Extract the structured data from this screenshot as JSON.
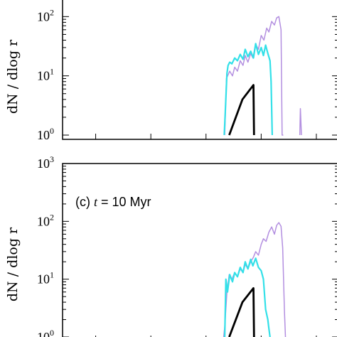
{
  "chart_data": [
    {
      "panel": "b",
      "type": "line",
      "panel_label": "",
      "ylabel": "dN / dlog r",
      "yscale": "log",
      "ylim": [
        1,
        1000
      ],
      "ytick_labels": [
        {
          "base": "10",
          "exp": "0",
          "value": 1
        },
        {
          "base": "10",
          "exp": "1",
          "value": 10
        },
        {
          "base": "10",
          "exp": "2",
          "value": 100
        }
      ],
      "xticks": [
        0.6,
        1.6,
        2.6,
        3.6,
        4.6
      ],
      "xlim": [
        0,
        5
      ],
      "series": [
        {
          "color": "#b38fe0",
          "width": 1.5,
          "x": [
            2.94,
            2.97,
            3.03,
            3.08,
            3.12,
            3.17,
            3.22,
            3.27,
            3.31,
            3.36,
            3.41,
            3.45,
            3.5,
            3.55,
            3.6,
            3.65,
            3.7,
            3.74,
            3.79,
            3.84,
            3.88,
            3.92,
            3.96,
            3.98,
            4.0
          ],
          "y": [
            1,
            9,
            12,
            10,
            14,
            12,
            18,
            15,
            22,
            17,
            24,
            20,
            34,
            28,
            48,
            40,
            64,
            55,
            83,
            72,
            95,
            100,
            60,
            1,
            1
          ]
        },
        {
          "color": "#b38fe0",
          "width": 1.5,
          "x": [
            4.3,
            4.31,
            4.33
          ],
          "y": [
            1,
            2.8,
            1
          ]
        },
        {
          "color": "#33e0e8",
          "width": 2.2,
          "x": [
            2.93,
            2.95,
            2.98,
            3.0,
            3.03,
            3.07,
            3.12,
            3.17,
            3.22,
            3.27,
            3.31,
            3.36,
            3.41,
            3.46,
            3.5,
            3.55,
            3.6,
            3.64,
            3.68,
            3.72,
            3.76,
            3.78,
            3.8
          ],
          "y": [
            1,
            2.5,
            11,
            15,
            17,
            16,
            20,
            18,
            23,
            19,
            28,
            21,
            26,
            20,
            35,
            23,
            30,
            22,
            33,
            24,
            18,
            8,
            1
          ]
        },
        {
          "color": "#000000",
          "width": 2.8,
          "x": [
            3.02,
            3.26,
            3.46,
            3.47
          ],
          "y": [
            1,
            4,
            7,
            1
          ]
        }
      ]
    },
    {
      "panel": "c",
      "type": "line",
      "panel_label": "(c) t = 10 Myr",
      "panel_label_parts": {
        "prefix": "(c) ",
        "var": "t",
        "suffix": " = 10 Myr"
      },
      "ylabel": "dN / dlog r",
      "yscale": "log",
      "ylim": [
        1,
        1000
      ],
      "ytick_labels": [
        {
          "base": "10",
          "exp": "0",
          "value": 1
        },
        {
          "base": "10",
          "exp": "1",
          "value": 10
        },
        {
          "base": "10",
          "exp": "2",
          "value": 100
        },
        {
          "base": "10",
          "exp": "3",
          "value": 1000
        }
      ],
      "xticks": [
        0.6,
        1.6,
        2.6,
        3.6,
        4.6
      ],
      "xlim": [
        0,
        5
      ],
      "series": [
        {
          "color": "#b38fe0",
          "width": 1.5,
          "x": [
            2.92,
            2.94,
            2.98,
            3.02,
            3.07,
            3.12,
            3.17,
            3.22,
            3.27,
            3.31,
            3.36,
            3.41,
            3.46,
            3.5,
            3.55,
            3.6,
            3.64,
            3.69,
            3.74,
            3.79,
            3.84,
            3.88,
            3.92,
            3.96,
            3.99,
            4.02,
            4.04
          ],
          "y": [
            1,
            1.5,
            6,
            12,
            10,
            13,
            11,
            15,
            13,
            18,
            15,
            20,
            24,
            30,
            26,
            40,
            50,
            45,
            65,
            80,
            60,
            85,
            95,
            82,
            35,
            3,
            1
          ]
        },
        {
          "color": "#33e0e8",
          "width": 2.2,
          "x": [
            2.94,
            2.96,
            2.99,
            3.03,
            3.08,
            3.12,
            3.17,
            3.22,
            3.27,
            3.31,
            3.36,
            3.41,
            3.45,
            3.5,
            3.55,
            3.6,
            3.64,
            3.68,
            3.72,
            3.74,
            3.76
          ],
          "y": [
            1,
            10,
            6,
            12,
            9,
            13,
            11,
            16,
            13,
            20,
            15,
            22,
            17,
            23,
            16,
            14,
            10,
            3,
            2,
            1.4,
            1
          ]
        },
        {
          "color": "#000000",
          "width": 2.8,
          "x": [
            3.02,
            3.26,
            3.46,
            3.47
          ],
          "y": [
            1,
            4,
            7,
            1
          ]
        }
      ]
    }
  ]
}
